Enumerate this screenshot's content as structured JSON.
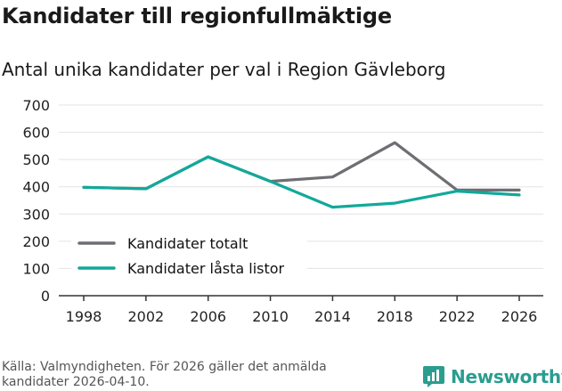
{
  "header": {
    "title": "Kandidater till regionfullmäktige",
    "subtitle": "Antal unika kandidater per val i Region Gävleborg"
  },
  "footer": {
    "source": "Källa: Valmyndigheten. För 2026 gäller det anmälda kandidater 2026-04-10.",
    "brand": "Newsworthy",
    "brand_color": "#2a9d8f"
  },
  "chart_data": {
    "type": "line",
    "title": "Kandidater till regionfullmäktige",
    "subtitle": "Antal unika kandidater per val i Region Gävleborg",
    "xlabel": "",
    "ylabel": "",
    "x": [
      1998,
      2002,
      2006,
      2010,
      2014,
      2018,
      2022,
      2026
    ],
    "ylim": [
      0,
      700
    ],
    "yticks": [
      0,
      100,
      200,
      300,
      400,
      500,
      600,
      700
    ],
    "grid": true,
    "legend_position": "bottom-left",
    "series": [
      {
        "name": "Kandidater totalt",
        "color": "#6e6e73",
        "values": [
          398,
          393,
          510,
          420,
          436,
          562,
          388,
          388
        ]
      },
      {
        "name": "Kandidater låsta listor",
        "color": "#11a99a",
        "values": [
          398,
          393,
          510,
          420,
          325,
          340,
          384,
          370
        ]
      }
    ]
  }
}
